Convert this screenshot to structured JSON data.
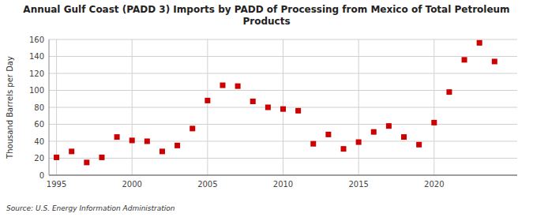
{
  "chart_data": {
    "type": "scatter",
    "title": "Annual Gulf Coast (PADD 3) Imports by PADD of Processing from Mexico of Total Petroleum\nProducts",
    "ylabel": "Thousand Barrels per Day",
    "source": "Source: U.S. Energy Information Administration",
    "color": "#cc0000",
    "marker": "square",
    "grid": true,
    "xlim": [
      1994.5,
      2025.5
    ],
    "ylim": [
      0,
      160
    ],
    "yticks": [
      0,
      20,
      40,
      60,
      80,
      100,
      120,
      140,
      160
    ],
    "xticks": [
      1995,
      2000,
      2005,
      2010,
      2015,
      2020
    ],
    "x": [
      1995,
      1996,
      1997,
      1998,
      1999,
      2000,
      2001,
      2002,
      2003,
      2004,
      2005,
      2006,
      2007,
      2008,
      2009,
      2010,
      2011,
      2012,
      2013,
      2014,
      2015,
      2016,
      2017,
      2018,
      2019,
      2020,
      2021,
      2022,
      2023,
      2024
    ],
    "values": [
      21,
      28,
      15,
      21,
      45,
      41,
      40,
      28,
      35,
      55,
      88,
      106,
      105,
      87,
      80,
      78,
      76,
      37,
      48,
      31,
      39,
      51,
      58,
      45,
      36,
      62,
      98,
      136,
      156,
      134
    ]
  }
}
